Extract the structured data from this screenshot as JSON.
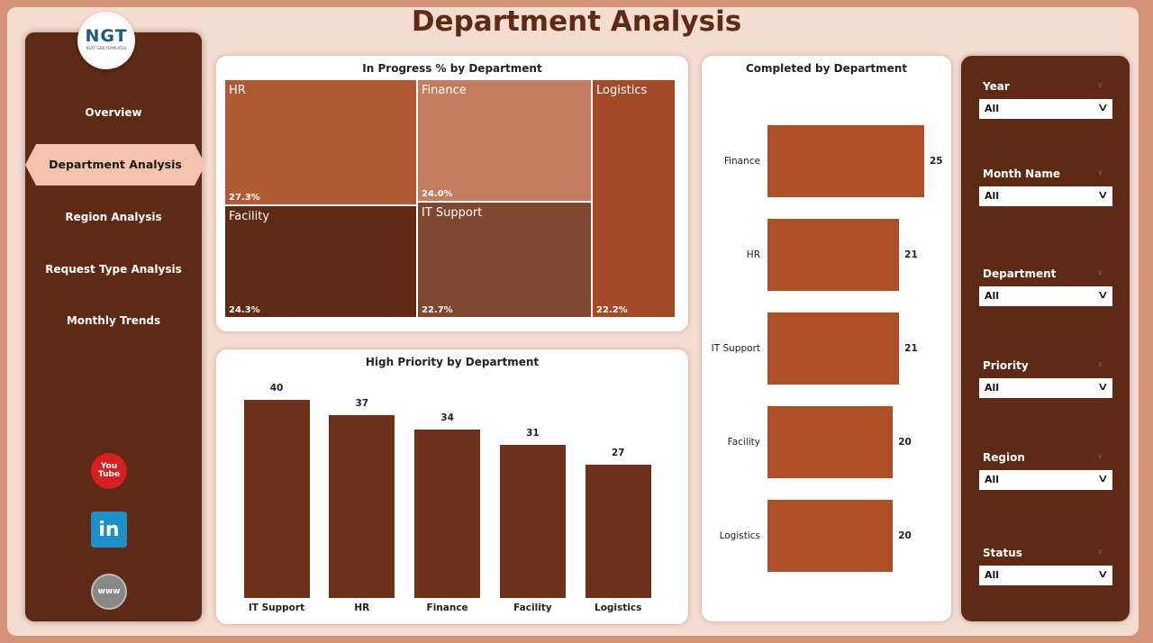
{
  "header": {
    "title": "Department Analysis"
  },
  "logo": {
    "text": "NGT",
    "subtext": "NEXT GEN TEMPLATES"
  },
  "nav": [
    {
      "label": "Overview"
    },
    {
      "label": "Department Analysis",
      "active": true
    },
    {
      "label": "Region Analysis"
    },
    {
      "label": "Request Type Analysis"
    },
    {
      "label": "Monthly Trends"
    }
  ],
  "social": [
    {
      "icon": "youtube-icon",
      "label": "You Tube"
    },
    {
      "icon": "linkedin-icon",
      "label": "in"
    },
    {
      "icon": "website-icon",
      "label": "www"
    }
  ],
  "colors": {
    "brown_dark": "#5e2a15",
    "bar_hp": "#6e311c",
    "bar_completed": "#ad4f27"
  },
  "chart_data": [
    {
      "type": "treemap",
      "title": "In Progress % by Department",
      "items": [
        {
          "name": "HR",
          "value": "27.3%",
          "color": "#b05a36"
        },
        {
          "name": "Finance",
          "value": "24.0%",
          "color": "#c47c5e"
        },
        {
          "name": "Facility",
          "value": "24.3%",
          "color": "#5e2a15"
        },
        {
          "name": "IT Support",
          "value": "22.7%",
          "color": "#7f4630"
        },
        {
          "name": "Logistics",
          "value": "22.2%",
          "color": "#a34a28"
        }
      ]
    },
    {
      "type": "bar",
      "title": "High Priority by Department",
      "categories": [
        "IT Support",
        "HR",
        "Finance",
        "Facility",
        "Logistics"
      ],
      "values": [
        40,
        37,
        34,
        31,
        27
      ],
      "ylim": [
        0,
        40
      ]
    },
    {
      "type": "bar",
      "orientation": "horizontal",
      "title": "Completed by Department",
      "categories": [
        "Finance",
        "HR",
        "IT Support",
        "Facility",
        "Logistics"
      ],
      "values": [
        25,
        21,
        21,
        20,
        20
      ],
      "xlim": [
        0,
        25
      ]
    }
  ],
  "filters": [
    {
      "label": "Year",
      "value": "All"
    },
    {
      "label": "Month Name",
      "value": "All"
    },
    {
      "label": "Department",
      "value": "All"
    },
    {
      "label": "Priority",
      "value": "All"
    },
    {
      "label": "Region",
      "value": "All"
    },
    {
      "label": "Status",
      "value": "All"
    }
  ]
}
